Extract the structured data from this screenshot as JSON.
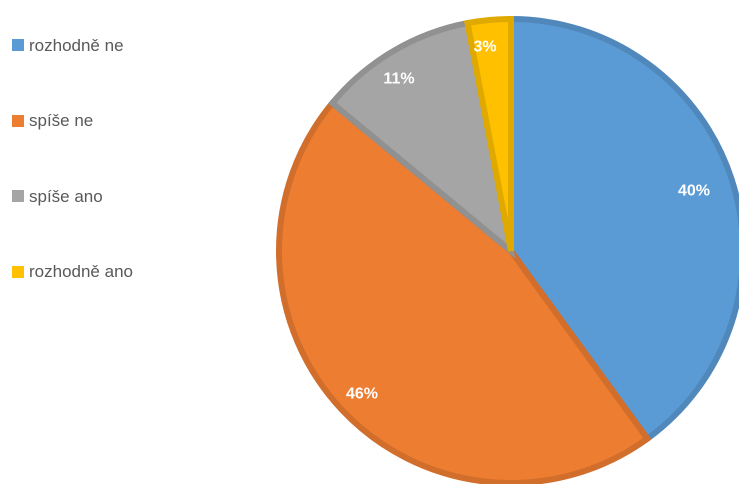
{
  "chart_data": {
    "type": "pie",
    "title": "",
    "categories": [
      "rozhodně ne",
      "spíše ne",
      "spíše ano",
      "rozhodně ano"
    ],
    "values": [
      40,
      46,
      11,
      3
    ],
    "data_labels": [
      "40%",
      "46%",
      "11%",
      "3%"
    ],
    "colors": [
      "#5B9BD5",
      "#ED7D31",
      "#A5A5A5",
      "#FFC000"
    ],
    "legend": {
      "position": "left",
      "entries": [
        "rozhodně ne",
        "spíše ne",
        "spíše ano",
        "rozhodně ano"
      ]
    },
    "start_angle_deg": 0,
    "direction": "clockwise"
  }
}
